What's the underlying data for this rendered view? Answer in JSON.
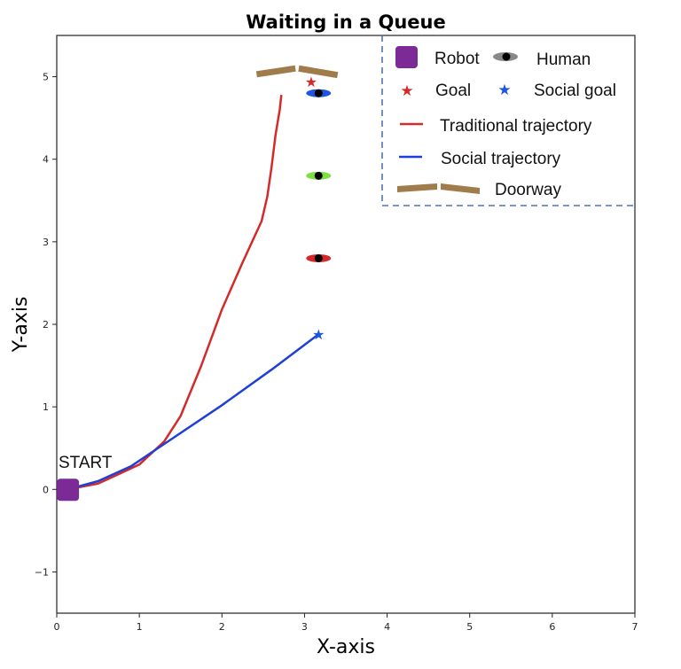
{
  "chart_data": {
    "type": "line",
    "title": "Waiting in a Queue",
    "xlabel": "X-axis",
    "ylabel": "Y-axis",
    "xlim": [
      0,
      7
    ],
    "ylim": [
      -1.5,
      5.5
    ],
    "xticks": [
      "0",
      "1",
      "2",
      "3",
      "4",
      "5",
      "6",
      "7"
    ],
    "yticks": [
      "−1",
      "0",
      "1",
      "2",
      "3",
      "4",
      "5"
    ],
    "grid": false,
    "legend_placement": "top-right",
    "start_label": "START",
    "robot": {
      "x": 0.13,
      "y": 0.0,
      "color": "#7b2a96"
    },
    "series": [
      {
        "name": "Traditional trajectory",
        "color": "#d42a2a",
        "x": [
          0.13,
          0.5,
          1.0,
          1.3,
          1.5,
          1.75,
          2.0,
          2.25,
          2.48,
          2.55,
          2.6,
          2.65,
          2.7,
          2.72
        ],
        "y": [
          0.0,
          0.07,
          0.3,
          0.58,
          0.89,
          1.5,
          2.18,
          2.75,
          3.25,
          3.55,
          3.9,
          4.3,
          4.6,
          4.78
        ]
      },
      {
        "name": "Social trajectory",
        "color": "#1f3fd9",
        "x": [
          0.13,
          0.5,
          0.9,
          1.3,
          2.0,
          2.6,
          3.17
        ],
        "y": [
          0.0,
          0.1,
          0.28,
          0.55,
          1.02,
          1.45,
          1.88
        ]
      }
    ],
    "humans": [
      {
        "x": 3.17,
        "y": 4.8,
        "color": "#1f55e0"
      },
      {
        "x": 3.17,
        "y": 3.8,
        "color": "#7ee040"
      },
      {
        "x": 3.17,
        "y": 2.8,
        "color": "#d42a2a"
      }
    ],
    "goal": {
      "x": 3.08,
      "y": 4.94,
      "color": "#d42a2a"
    },
    "social_goal": {
      "x": 3.17,
      "y": 1.88,
      "color": "#1f55e0"
    },
    "doorway": {
      "color": "#a07c4a",
      "segments": [
        {
          "x": [
            2.42,
            2.89
          ],
          "y": [
            5.03,
            5.1
          ]
        },
        {
          "x": [
            2.93,
            3.4
          ],
          "y": [
            5.1,
            5.02
          ]
        }
      ]
    },
    "legend": {
      "robot": "Robot",
      "human": "Human",
      "goal": "Goal",
      "social_goal": "Social goal",
      "traditional": "Traditional trajectory",
      "social": "Social trajectory",
      "doorway": "Doorway"
    }
  }
}
